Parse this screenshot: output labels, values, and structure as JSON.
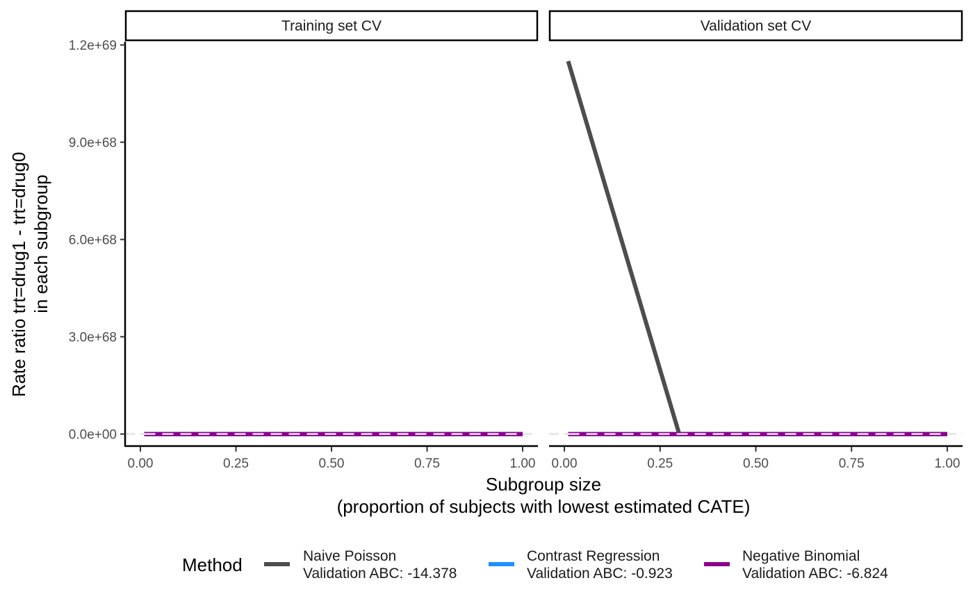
{
  "chart_data": {
    "type": "line",
    "x_title_line1": "Subgroup size",
    "x_title_line2": "(proportion of subjects with lowest estimated CATE)",
    "y_title_line1": "Rate ratio trt=drug1 - trt=drug0",
    "y_title_line2": "in each subgroup",
    "xlim": [
      -0.04,
      1.04
    ],
    "ylim": [
      -3.5e+67,
      1.21e+69
    ],
    "x_ticks": [
      0,
      0.25,
      0.5,
      0.75,
      1
    ],
    "x_tick_labels": [
      "0.00",
      "0.25",
      "0.50",
      "0.75",
      "1.00"
    ],
    "y_ticks": [
      0,
      3e+68,
      6e+68,
      9e+68,
      1.2e+69
    ],
    "y_tick_labels": [
      "0.0e+00",
      "3.0e+68",
      "6.0e+68",
      "9.0e+68",
      "1.2e+69"
    ],
    "reference_line_y": 0,
    "reference_line_color": "#e6e6e6",
    "legend": {
      "title": "Method",
      "placement": "bottom",
      "entries": [
        {
          "line1": "Naive Poisson",
          "line2": "Validation ABC: -14.378",
          "color": "#4d4d4d"
        },
        {
          "line1": "Contrast Regression",
          "line2": "Validation ABC: -0.923",
          "color": "#1e90ff"
        },
        {
          "line1": "Negative Binomial",
          "line2": "Validation ABC: -6.824",
          "color": "#8b008b"
        }
      ]
    },
    "panels": [
      {
        "title": "Training set CV",
        "series": [
          {
            "name": "Naive Poisson",
            "color": "#4d4d4d",
            "x": [
              0.01,
              1.0
            ],
            "y": [
              0,
              0
            ]
          },
          {
            "name": "Contrast Regression",
            "color": "#1e90ff",
            "x": [
              0.01,
              1.0
            ],
            "y": [
              0,
              0
            ]
          },
          {
            "name": "Negative Binomial",
            "color": "#8b008b",
            "x": [
              0.01,
              1.0
            ],
            "y": [
              0,
              0
            ]
          }
        ]
      },
      {
        "title": "Validation set CV",
        "series": [
          {
            "name": "Naive Poisson",
            "color": "#4d4d4d",
            "x": [
              0.01,
              0.3,
              1.0
            ],
            "y": [
              1.15e+69,
              0,
              0
            ]
          },
          {
            "name": "Contrast Regression",
            "color": "#1e90ff",
            "x": [
              0.01,
              1.0
            ],
            "y": [
              0,
              0
            ]
          },
          {
            "name": "Negative Binomial",
            "color": "#8b008b",
            "x": [
              0.01,
              1.0
            ],
            "y": [
              0,
              0
            ]
          }
        ]
      }
    ]
  }
}
